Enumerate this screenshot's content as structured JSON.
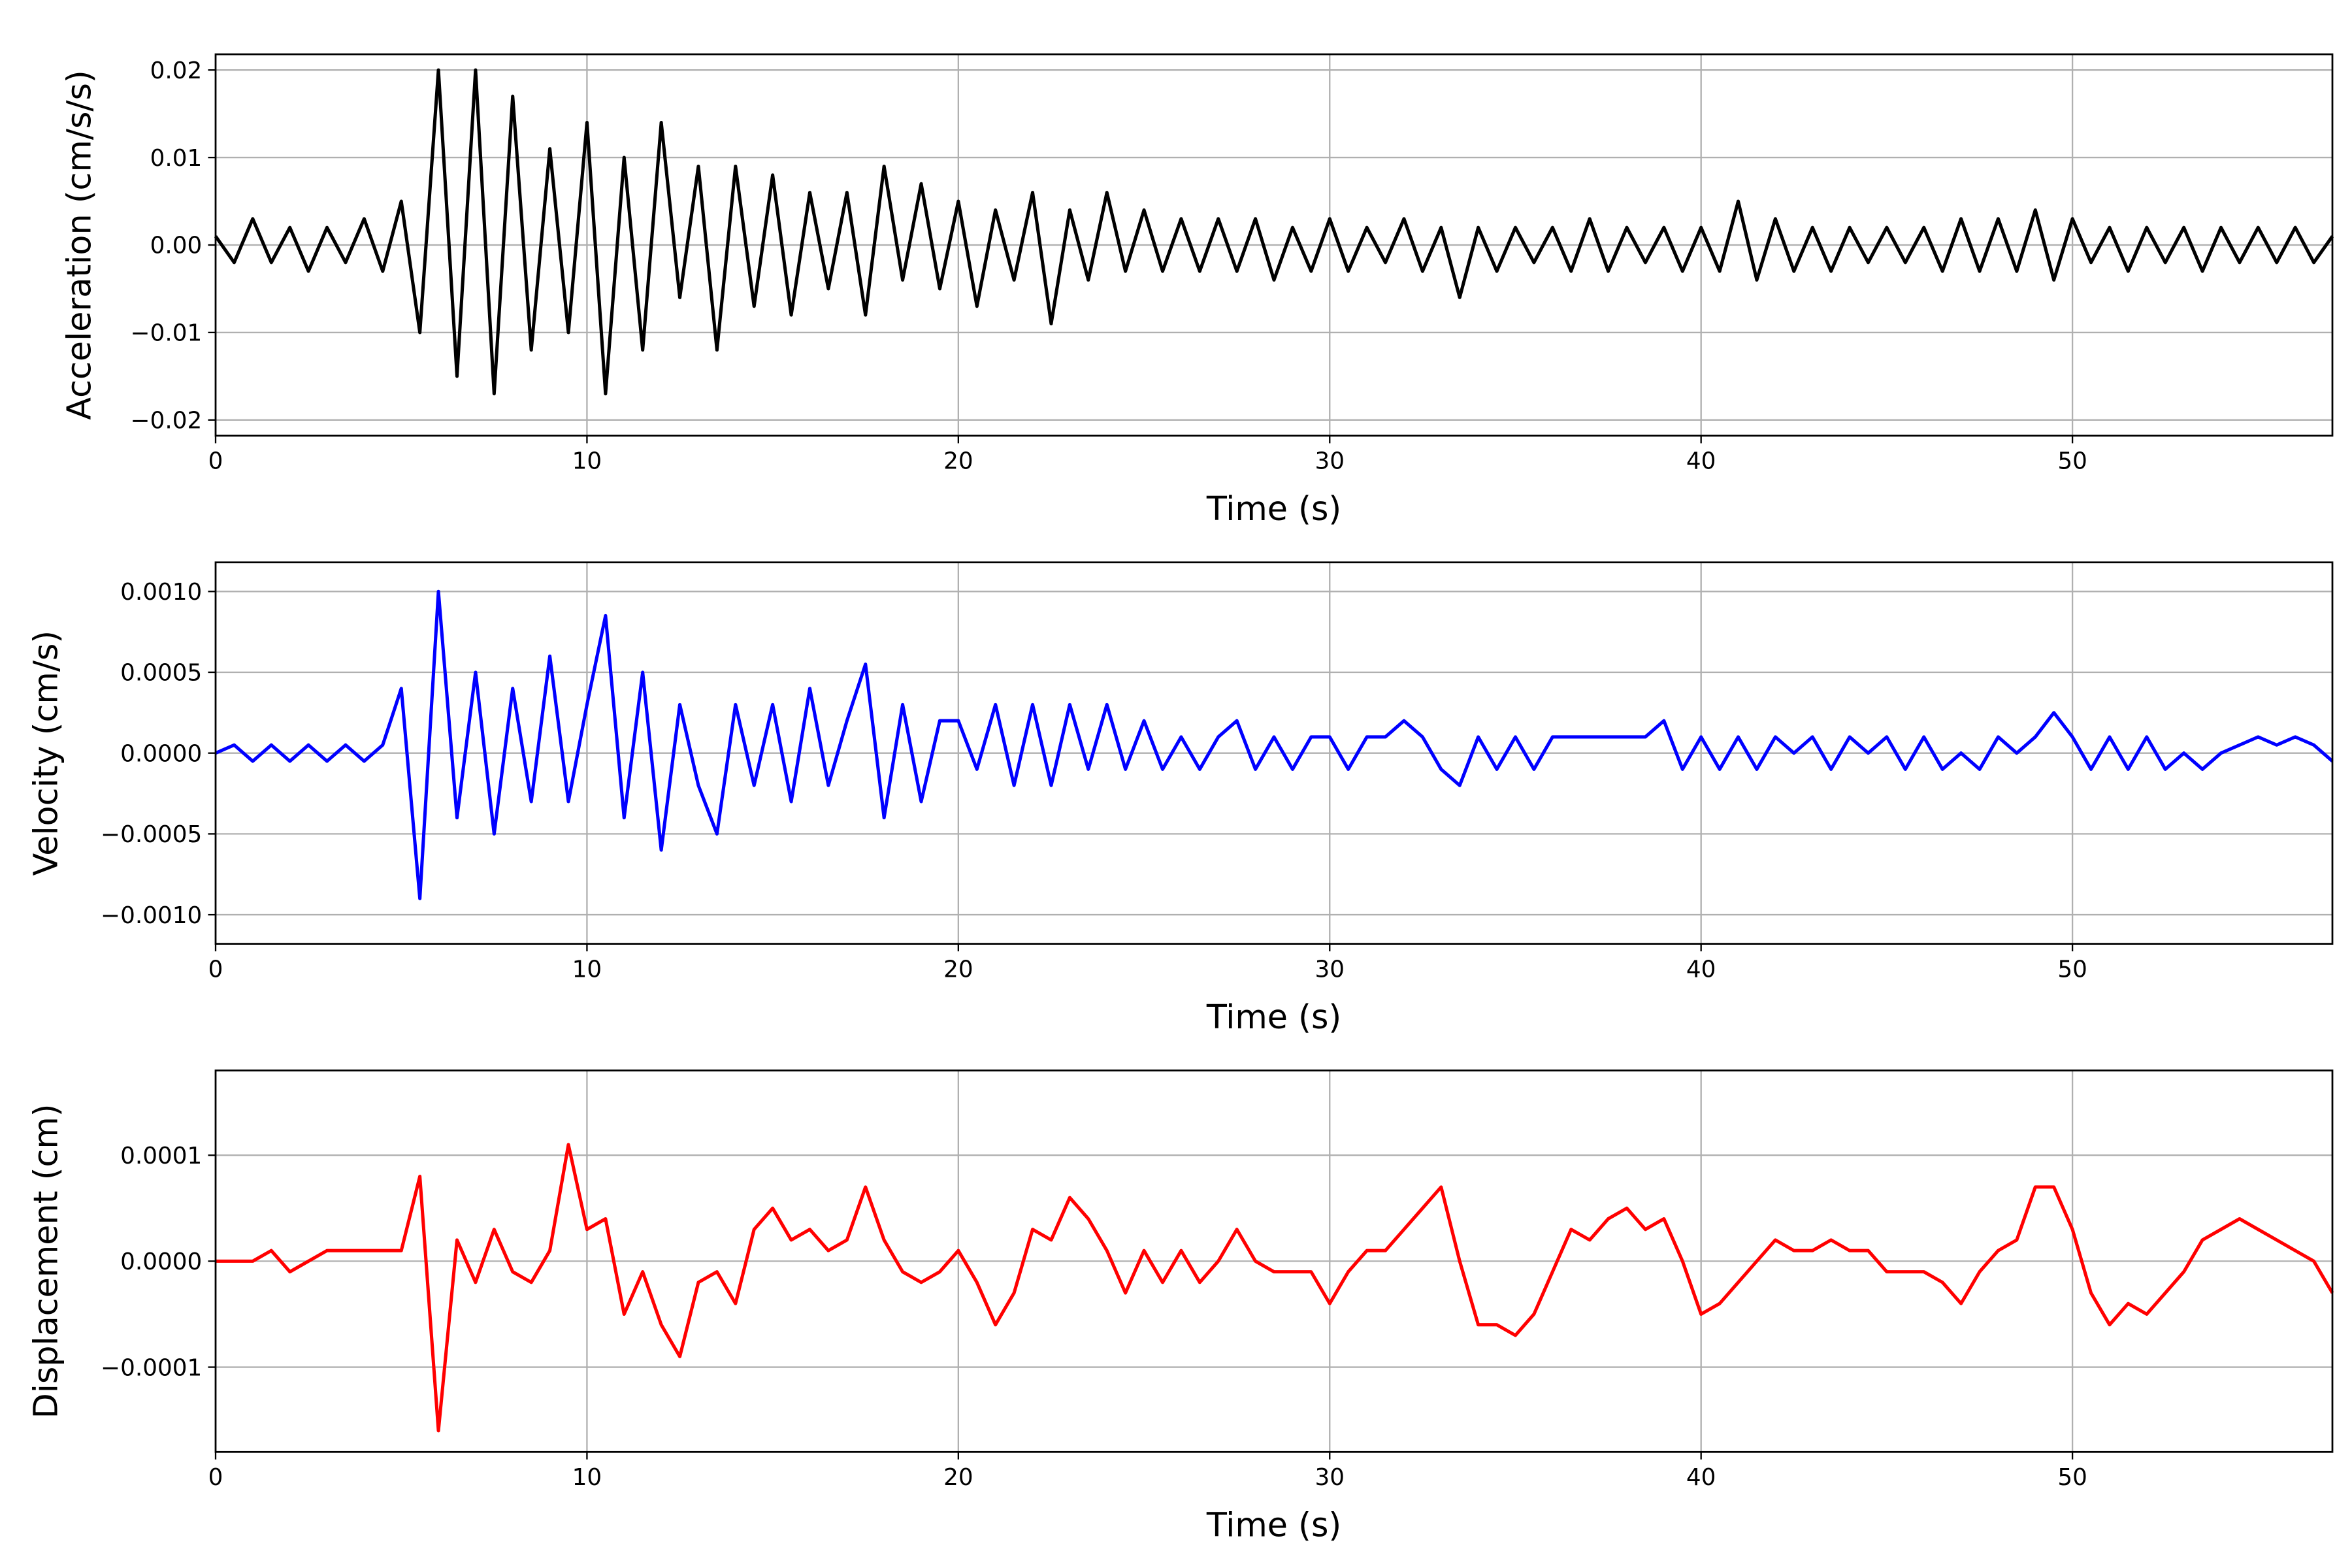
{
  "chart_data": [
    {
      "type": "line",
      "xlabel": "Time (s)",
      "ylabel": "Acceleration (cm/s/s)",
      "xlim": [
        0,
        57
      ],
      "ylim": [
        -0.0218,
        0.0218
      ],
      "xticks": [
        0,
        10,
        20,
        30,
        40,
        50
      ],
      "yticks": [
        -0.02,
        -0.01,
        0.0,
        0.01,
        0.02
      ],
      "ytick_labels": [
        "−0.02",
        "−0.01",
        "0.00",
        "0.01",
        "0.02"
      ],
      "grid": true,
      "color": "#000000",
      "x_step": 0.5,
      "values": [
        0.001,
        -0.002,
        0.003,
        -0.002,
        0.002,
        -0.003,
        0.002,
        -0.002,
        0.003,
        -0.003,
        0.005,
        -0.01,
        0.02,
        -0.015,
        0.02,
        -0.017,
        0.017,
        -0.012,
        0.011,
        -0.01,
        0.014,
        -0.017,
        0.01,
        -0.012,
        0.014,
        -0.006,
        0.009,
        -0.012,
        0.009,
        -0.007,
        0.008,
        -0.008,
        0.006,
        -0.005,
        0.006,
        -0.008,
        0.009,
        -0.004,
        0.007,
        -0.005,
        0.005,
        -0.007,
        0.004,
        -0.004,
        0.006,
        -0.009,
        0.004,
        -0.004,
        0.006,
        -0.003,
        0.004,
        -0.003,
        0.003,
        -0.003,
        0.003,
        -0.003,
        0.003,
        -0.004,
        0.002,
        -0.003,
        0.003,
        -0.003,
        0.002,
        -0.002,
        0.003,
        -0.003,
        0.002,
        -0.006,
        0.002,
        -0.003,
        0.002,
        -0.002,
        0.002,
        -0.003,
        0.003,
        -0.003,
        0.002,
        -0.002,
        0.002,
        -0.003,
        0.002,
        -0.003,
        0.005,
        -0.004,
        0.003,
        -0.003,
        0.002,
        -0.003,
        0.002,
        -0.002,
        0.002,
        -0.002,
        0.002,
        -0.003,
        0.003,
        -0.003,
        0.003,
        -0.003,
        0.004,
        -0.004,
        0.003,
        -0.002,
        0.002,
        -0.003,
        0.002,
        -0.002,
        0.002,
        -0.003,
        0.002,
        -0.002,
        0.002,
        -0.002,
        0.002,
        -0.002,
        0.001
      ]
    },
    {
      "type": "line",
      "xlabel": "Time (s)",
      "ylabel": "Velocity (cm/s)",
      "xlim": [
        0,
        57
      ],
      "ylim": [
        -0.00118,
        0.00118
      ],
      "xticks": [
        0,
        10,
        20,
        30,
        40,
        50
      ],
      "yticks": [
        -0.001,
        -0.0005,
        0.0,
        0.0005,
        0.001
      ],
      "ytick_labels": [
        "−0.0010",
        "−0.0005",
        "0.0000",
        "0.0005",
        "0.0010"
      ],
      "grid": true,
      "color": "#0000ff",
      "x_step": 0.5,
      "values": [
        0,
        5e-05,
        -5e-05,
        5e-05,
        -5e-05,
        5e-05,
        -5e-05,
        5e-05,
        -5e-05,
        5e-05,
        0.0004,
        -0.0009,
        0.001,
        -0.0004,
        0.0005,
        -0.0005,
        0.0004,
        -0.0003,
        0.0006,
        -0.0003,
        0.0003,
        0.00085,
        -0.0004,
        0.0005,
        -0.0006,
        0.0003,
        -0.0002,
        -0.0005,
        0.0003,
        -0.0002,
        0.0003,
        -0.0003,
        0.0004,
        -0.0002,
        0.0002,
        0.00055,
        -0.0004,
        0.0003,
        -0.0003,
        0.0002,
        0.0002,
        -0.0001,
        0.0003,
        -0.0002,
        0.0003,
        -0.0002,
        0.0003,
        -0.0001,
        0.0003,
        -0.0001,
        0.0002,
        -0.0001,
        0.0001,
        -0.0001,
        0.0001,
        0.0002,
        -0.0001,
        0.0001,
        -0.0001,
        0.0001,
        0.0001,
        -0.0001,
        0.0001,
        0.0001,
        0.0002,
        0.0001,
        -0.0001,
        -0.0002,
        0.0001,
        -0.0001,
        0.0001,
        -0.0001,
        0.0001,
        0.0001,
        0.0001,
        0.0001,
        0.0001,
        0.0001,
        0.0002,
        -0.0001,
        0.0001,
        -0.0001,
        0.0001,
        -0.0001,
        0.0001,
        0,
        0.0001,
        -0.0001,
        0.0001,
        0,
        0.0001,
        -0.0001,
        0.0001,
        -0.0001,
        0,
        -0.0001,
        0.0001,
        0,
        0.0001,
        0.00025,
        0.0001,
        -0.0001,
        0.0001,
        -0.0001,
        0.0001,
        -0.0001,
        0,
        -0.0001,
        0,
        5e-05,
        0.0001,
        5e-05,
        0.0001,
        5e-05,
        -5e-05
      ]
    },
    {
      "type": "line",
      "xlabel": "Time (s)",
      "ylabel": "Displacement (cm)",
      "xlim": [
        0,
        57
      ],
      "ylim": [
        -0.00018,
        0.00018
      ],
      "xticks": [
        0,
        10,
        20,
        30,
        40,
        50
      ],
      "yticks": [
        -0.0001,
        0.0,
        0.0001
      ],
      "ytick_labels": [
        "−0.0001",
        "0.0000",
        "0.0001"
      ],
      "grid": true,
      "color": "#ff0000",
      "x_step": 0.5,
      "values": [
        0,
        0,
        0,
        1e-05,
        -1e-05,
        0,
        1e-05,
        1e-05,
        1e-05,
        1e-05,
        1e-05,
        8e-05,
        -0.00016,
        2e-05,
        -2e-05,
        3e-05,
        -1e-05,
        -2e-05,
        1e-05,
        0.00011,
        3e-05,
        4e-05,
        -5e-05,
        -1e-05,
        -6e-05,
        -9e-05,
        -2e-05,
        -1e-05,
        -4e-05,
        3e-05,
        5e-05,
        2e-05,
        3e-05,
        1e-05,
        2e-05,
        7e-05,
        2e-05,
        -1e-05,
        -2e-05,
        -1e-05,
        1e-05,
        -2e-05,
        -6e-05,
        -3e-05,
        3e-05,
        2e-05,
        6e-05,
        4e-05,
        1e-05,
        -3e-05,
        1e-05,
        -2e-05,
        1e-05,
        -2e-05,
        0,
        3e-05,
        0,
        -1e-05,
        -1e-05,
        -1e-05,
        -4e-05,
        -1e-05,
        1e-05,
        1e-05,
        3e-05,
        5e-05,
        7e-05,
        0,
        -6e-05,
        -6e-05,
        -7e-05,
        -5e-05,
        -1e-05,
        3e-05,
        2e-05,
        4e-05,
        5e-05,
        3e-05,
        4e-05,
        0,
        -5e-05,
        -4e-05,
        -2e-05,
        0,
        2e-05,
        1e-05,
        1e-05,
        2e-05,
        1e-05,
        1e-05,
        -1e-05,
        -1e-05,
        -1e-05,
        -2e-05,
        -4e-05,
        -1e-05,
        1e-05,
        2e-05,
        7e-05,
        7e-05,
        3e-05,
        -3e-05,
        -6e-05,
        -4e-05,
        -5e-05,
        -3e-05,
        -1e-05,
        2e-05,
        3e-05,
        4e-05,
        3e-05,
        2e-05,
        1e-05,
        0,
        -3e-05
      ]
    }
  ]
}
